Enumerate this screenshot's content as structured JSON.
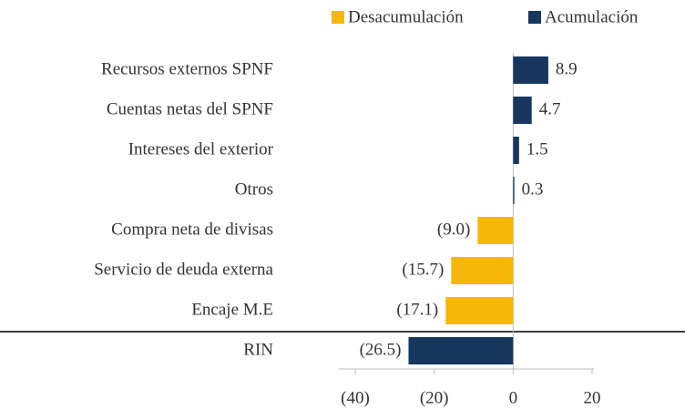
{
  "chart_data": {
    "type": "hbar",
    "categories": [
      "Recursos externos SPNF",
      "Cuentas netas del SPNF",
      "Intereses del exterior",
      "Otros",
      "Compra neta de divisas",
      "Servicio de deuda externa",
      "Encaje M.E",
      "RIN"
    ],
    "series": [
      {
        "name": "Desacumulación",
        "color": "#f5b80a",
        "values": [
          null,
          null,
          null,
          null,
          -9.0,
          -15.7,
          -17.1,
          null
        ],
        "value_labels": [
          null,
          null,
          null,
          null,
          "(9.0)",
          "(15.7)",
          "(17.1)",
          null
        ]
      },
      {
        "name": "Acumulación",
        "color": "#17375e",
        "values": [
          8.9,
          4.7,
          1.5,
          0.3,
          null,
          null,
          null,
          -26.5
        ],
        "value_labels": [
          null,
          null,
          null,
          null,
          null,
          null,
          null,
          "(26.5)"
        ]
      }
    ],
    "xlim": [
      -40,
      20
    ],
    "xticks": [
      {
        "value": -40,
        "label": "(40)"
      },
      {
        "value": -20,
        "label": "(20)"
      },
      0,
      20
    ],
    "legend": "top"
  }
}
